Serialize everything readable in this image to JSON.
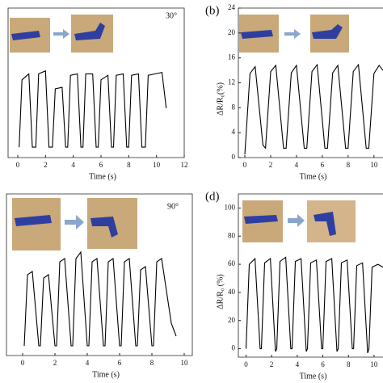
{
  "chart_data": [
    {
      "type": "line",
      "annotation": "30°",
      "xlabel": "Time (s)",
      "xlim": [
        -0.7,
        12
      ],
      "ylim": [
        0,
        1
      ],
      "xticks": [
        0,
        2,
        4,
        6,
        8,
        10,
        12
      ],
      "x": [
        0.1,
        0.3,
        0.8,
        1.05,
        1.3,
        1.5,
        2.0,
        2.25,
        2.5,
        2.7,
        3.2,
        3.45,
        3.6,
        3.8,
        4.3,
        4.55,
        4.7,
        4.9,
        5.4,
        5.65,
        5.8,
        6.0,
        6.5,
        6.75,
        6.9,
        7.1,
        7.6,
        7.85,
        8.0,
        8.2,
        8.7,
        8.95,
        9.2,
        9.4,
        10.4,
        10.7
      ],
      "values": [
        0.07,
        0.52,
        0.56,
        0.07,
        0.07,
        0.56,
        0.58,
        0.07,
        0.07,
        0.46,
        0.47,
        0.07,
        0.07,
        0.55,
        0.56,
        0.07,
        0.07,
        0.56,
        0.56,
        0.07,
        0.07,
        0.52,
        0.55,
        0.07,
        0.07,
        0.55,
        0.56,
        0.07,
        0.07,
        0.55,
        0.56,
        0.07,
        0.07,
        0.55,
        0.57,
        0.33
      ],
      "color": "#000000"
    },
    {
      "type": "line",
      "panel_label": "(b)",
      "xlabel": "Time (s)",
      "ylabel": "ΔR/R₀(%)",
      "xlim": [
        -0.5,
        10.7
      ],
      "ylim": [
        0,
        24
      ],
      "xticks": [
        0,
        2,
        4,
        6,
        8,
        10
      ],
      "yticks": [
        0,
        4,
        8,
        12,
        16,
        20,
        24
      ],
      "x": [
        0,
        0.4,
        0.8,
        1.4,
        1.6,
        2.0,
        2.4,
        3.0,
        3.2,
        3.6,
        4.0,
        4.6,
        4.8,
        5.2,
        5.6,
        6.2,
        6.4,
        6.8,
        7.2,
        7.8,
        8.0,
        8.4,
        8.8,
        9.4,
        9.6,
        10.0,
        10.4,
        10.7
      ],
      "values": [
        0.5,
        13.5,
        14.6,
        2,
        1.5,
        13.8,
        14.8,
        1.5,
        1.5,
        13.6,
        14.8,
        1.5,
        1.5,
        13.8,
        14.9,
        1.5,
        1.5,
        13.6,
        14.8,
        1.5,
        1.5,
        13.8,
        14.9,
        1.5,
        1.5,
        13.5,
        14.8,
        14
      ],
      "color": "#000000"
    },
    {
      "type": "line",
      "annotation": "90°",
      "xlabel": "Time (s)",
      "xlim": [
        -1,
        10.5
      ],
      "ylim": [
        0,
        1
      ],
      "xticks": [
        0,
        2,
        4,
        6,
        8,
        10
      ],
      "x": [
        0.1,
        0.3,
        0.6,
        1.0,
        1.1,
        1.3,
        1.6,
        2.0,
        2.1,
        2.3,
        2.6,
        3.0,
        3.1,
        3.3,
        3.6,
        4.0,
        4.1,
        4.3,
        4.6,
        5.0,
        5.1,
        5.3,
        5.6,
        6.0,
        6.1,
        6.3,
        6.6,
        7.0,
        7.1,
        7.3,
        7.6,
        8.0,
        8.1,
        8.3,
        8.6,
        9.2,
        9.5
      ],
      "values": [
        0.06,
        0.5,
        0.52,
        0.06,
        0.06,
        0.48,
        0.5,
        0.06,
        0.06,
        0.58,
        0.6,
        0.06,
        0.06,
        0.6,
        0.64,
        0.06,
        0.06,
        0.58,
        0.6,
        0.06,
        0.06,
        0.58,
        0.6,
        0.06,
        0.06,
        0.58,
        0.6,
        0.06,
        0.06,
        0.53,
        0.55,
        0.06,
        0.06,
        0.58,
        0.6,
        0.2,
        0.12
      ],
      "color": "#000000"
    },
    {
      "type": "line",
      "panel_label": "(d)",
      "xlabel": "Time (s)",
      "ylabel": "ΔR/R₀ (%)",
      "xlim": [
        -0.6,
        10.7
      ],
      "ylim": [
        -6,
        110
      ],
      "xticks": [
        0,
        2,
        4,
        6,
        8,
        10
      ],
      "yticks": [
        0,
        20,
        40,
        60,
        80,
        100
      ],
      "x": [
        0,
        0.25,
        0.7,
        1.1,
        1.2,
        1.45,
        1.9,
        2.3,
        2.4,
        2.65,
        3.1,
        3.5,
        3.6,
        3.85,
        4.3,
        4.7,
        4.8,
        5.05,
        5.5,
        5.9,
        6.0,
        6.25,
        6.7,
        7.1,
        7.2,
        7.45,
        7.9,
        8.3,
        8.4,
        8.65,
        9.1,
        9.5,
        9.6,
        9.85,
        10.3,
        10.7
      ],
      "values": [
        0,
        60,
        64,
        0,
        0,
        61,
        64,
        -2,
        0,
        62,
        65,
        0,
        0,
        62,
        64,
        -2,
        0,
        61,
        63,
        0,
        0,
        62,
        64,
        -2,
        0,
        61,
        63,
        0,
        0,
        59,
        61,
        -3,
        0,
        58,
        60,
        58
      ],
      "color": "#000000"
    }
  ]
}
